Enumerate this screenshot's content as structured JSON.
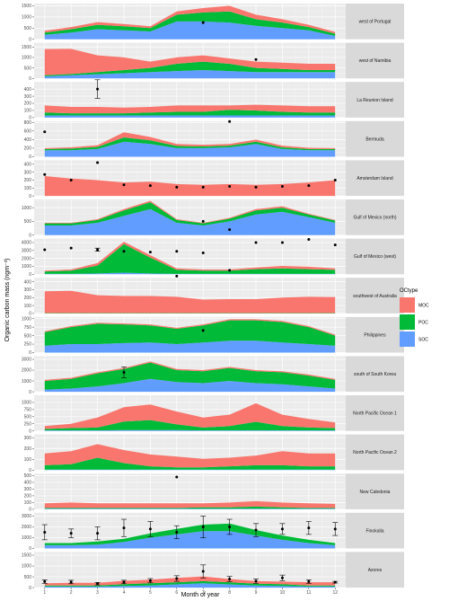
{
  "chart_data": {
    "type": "area",
    "stacked": true,
    "xlabel": "Month of year",
    "ylabel": "Organic carbon mass (ngm⁻³)",
    "x_ticks": [
      1,
      2,
      3,
      4,
      5,
      6,
      7,
      8,
      9,
      10,
      11,
      12
    ],
    "grid": true,
    "legend": {
      "title": "OCtype",
      "position": "right",
      "entries": [
        {
          "name": "MOC",
          "color": "#f8766d"
        },
        {
          "name": "POC",
          "color": "#00ba38"
        },
        {
          "name": "SOC",
          "color": "#619cff"
        }
      ]
    },
    "facets": [
      {
        "label": "west of Portugal",
        "ymax": 1600,
        "ticks": [
          0,
          500,
          1000,
          1500
        ],
        "SOC": [
          200,
          300,
          450,
          400,
          350,
          800,
          800,
          750,
          600,
          500,
          400,
          150
        ],
        "POC": [
          100,
          150,
          200,
          180,
          150,
          300,
          400,
          500,
          300,
          250,
          150,
          100
        ],
        "MOC": [
          80,
          100,
          120,
          100,
          80,
          150,
          200,
          250,
          200,
          150,
          100,
          80
        ],
        "obs": [
          [
            7,
            750
          ]
        ]
      },
      {
        "label": "west of Namibia",
        "ymax": 1700,
        "ticks": [
          0,
          500,
          1000,
          1500
        ],
        "SOC": [
          100,
          150,
          200,
          250,
          300,
          350,
          400,
          350,
          300,
          300,
          300,
          300
        ],
        "POC": [
          50,
          60,
          100,
          150,
          200,
          350,
          400,
          350,
          200,
          150,
          100,
          100
        ],
        "MOC": [
          1250,
          1200,
          800,
          600,
          300,
          300,
          300,
          250,
          300,
          300,
          300,
          300
        ],
        "obs": [
          [
            9,
            900
          ]
        ]
      },
      {
        "label": "La Reunion Island",
        "ymax": 500,
        "ticks": [
          0,
          100,
          200,
          300,
          400
        ],
        "SOC": [
          30,
          30,
          30,
          30,
          30,
          30,
          30,
          30,
          30,
          30,
          30,
          30
        ],
        "POC": [
          40,
          30,
          30,
          30,
          40,
          50,
          50,
          80,
          70,
          50,
          40,
          40
        ],
        "MOC": [
          100,
          90,
          90,
          80,
          80,
          90,
          90,
          60,
          80,
          90,
          90,
          90
        ],
        "obs": [
          [
            3,
            400,
            130
          ]
        ]
      },
      {
        "label": "Bermuda",
        "ymax": 830,
        "ticks": [
          0,
          200,
          400,
          600,
          800
        ],
        "SOC": [
          150,
          150,
          180,
          350,
          300,
          200,
          200,
          220,
          300,
          180,
          150,
          150
        ],
        "POC": [
          30,
          40,
          50,
          100,
          80,
          50,
          40,
          40,
          50,
          40,
          30,
          30
        ],
        "MOC": [
          20,
          30,
          40,
          120,
          80,
          50,
          40,
          40,
          50,
          40,
          30,
          20
        ],
        "obs": [
          [
            1,
            580
          ],
          [
            8,
            820
          ]
        ]
      },
      {
        "label": "Amsterdam Island",
        "ymax": 450,
        "ticks": [
          0,
          100,
          200,
          300,
          400
        ],
        "SOC": [
          0,
          0,
          0,
          0,
          0,
          0,
          0,
          0,
          0,
          0,
          0,
          0
        ],
        "POC": [
          0,
          0,
          0,
          0,
          0,
          0,
          0,
          0,
          0,
          0,
          0,
          0
        ],
        "MOC": [
          250,
          220,
          200,
          170,
          180,
          150,
          140,
          150,
          140,
          150,
          170,
          200
        ],
        "obs": [
          [
            1,
            270
          ],
          [
            2,
            200
          ],
          [
            3,
            420
          ],
          [
            4,
            140
          ],
          [
            5,
            130
          ],
          [
            6,
            110
          ],
          [
            7,
            110
          ],
          [
            8,
            120
          ],
          [
            9,
            110
          ],
          [
            10,
            120
          ],
          [
            11,
            130
          ],
          [
            12,
            200
          ]
        ]
      },
      {
        "label": "Gulf of Mexico (north)",
        "ymax": 1300,
        "ticks": [
          0,
          500,
          1000
        ],
        "SOC": [
          350,
          350,
          450,
          700,
          950,
          450,
          350,
          500,
          750,
          850,
          650,
          450
        ],
        "POC": [
          80,
          80,
          100,
          200,
          250,
          100,
          80,
          100,
          150,
          150,
          100,
          80
        ],
        "MOC": [
          20,
          20,
          30,
          50,
          50,
          30,
          20,
          30,
          50,
          50,
          30,
          20
        ],
        "obs": [
          [
            7,
            500
          ],
          [
            8,
            200
          ]
        ]
      },
      {
        "label": "Gulf of Mexico (west)",
        "ymax": 4500,
        "ticks": [
          0,
          1000,
          2000,
          3000,
          4000
        ],
        "SOC": [
          50,
          50,
          100,
          200,
          100,
          50,
          50,
          50,
          50,
          50,
          50,
          50
        ],
        "POC": [
          300,
          400,
          1000,
          3600,
          2000,
          500,
          400,
          400,
          600,
          700,
          600,
          500
        ],
        "MOC": [
          100,
          150,
          300,
          300,
          300,
          200,
          150,
          150,
          200,
          300,
          300,
          200
        ],
        "obs": [
          [
            1,
            3100
          ],
          [
            2,
            3300
          ],
          [
            3,
            3100,
            200
          ],
          [
            4,
            2900
          ],
          [
            5,
            2800
          ],
          [
            6,
            2900
          ],
          [
            7,
            2700
          ],
          [
            8,
            500
          ],
          [
            9,
            4000
          ],
          [
            10,
            4000
          ],
          [
            11,
            4400
          ],
          [
            12,
            3700
          ]
        ]
      },
      {
        "label": "southwest of Australia",
        "ymax": 450,
        "ticks": [
          0,
          100,
          200,
          300,
          400
        ],
        "SOC": [
          0,
          0,
          0,
          0,
          0,
          0,
          0,
          0,
          0,
          0,
          0,
          0
        ],
        "POC": [
          5,
          5,
          5,
          5,
          5,
          5,
          5,
          5,
          5,
          5,
          5,
          5
        ],
        "MOC": [
          275,
          280,
          225,
          215,
          215,
          205,
          170,
          175,
          175,
          195,
          205,
          200
        ],
        "obs": [
          [
            6,
            470
          ]
        ]
      },
      {
        "label": "Philippines",
        "ymax": 1050,
        "ticks": [
          0,
          250,
          500,
          750,
          1000
        ],
        "SOC": [
          200,
          250,
          250,
          280,
          300,
          250,
          300,
          350,
          350,
          300,
          250,
          200
        ],
        "POC": [
          400,
          500,
          600,
          550,
          500,
          450,
          500,
          600,
          600,
          600,
          500,
          300
        ],
        "MOC": [
          30,
          30,
          30,
          30,
          30,
          30,
          30,
          30,
          30,
          30,
          30,
          30
        ],
        "obs": [
          [
            7,
            650
          ]
        ]
      },
      {
        "label": "south of South Korea",
        "ymax": 3300,
        "ticks": [
          0,
          1000,
          2000,
          3000
        ],
        "SOC": [
          200,
          300,
          500,
          800,
          1200,
          900,
          800,
          1000,
          800,
          700,
          500,
          300
        ],
        "POC": [
          800,
          900,
          1200,
          1300,
          1500,
          1100,
          1100,
          1200,
          1100,
          1100,
          1000,
          800
        ],
        "MOC": [
          100,
          100,
          100,
          100,
          100,
          100,
          100,
          100,
          100,
          100,
          100,
          100
        ],
        "obs": [
          [
            4,
            1800,
            500
          ]
        ]
      },
      {
        "label": "North Pacific Ocean 1",
        "ymax": 1250,
        "ticks": [
          0,
          250,
          500,
          750,
          1000
        ],
        "SOC": [
          20,
          20,
          20,
          30,
          30,
          30,
          20,
          20,
          20,
          20,
          20,
          20
        ],
        "POC": [
          50,
          80,
          100,
          300,
          350,
          200,
          100,
          150,
          300,
          150,
          100,
          80
        ],
        "MOC": [
          100,
          150,
          350,
          500,
          550,
          450,
          350,
          400,
          650,
          400,
          300,
          200
        ],
        "obs": []
      },
      {
        "label": "North Pacific Ocean 2",
        "ymax": 330,
        "ticks": [
          0,
          100,
          200,
          300
        ],
        "SOC": [
          5,
          5,
          5,
          5,
          5,
          5,
          5,
          5,
          5,
          5,
          5,
          5
        ],
        "POC": [
          40,
          50,
          110,
          60,
          30,
          20,
          20,
          30,
          40,
          40,
          30,
          30
        ],
        "MOC": [
          110,
          120,
          125,
          120,
          110,
          100,
          80,
          80,
          90,
          130,
          120,
          120
        ],
        "obs": []
      },
      {
        "label": "New Caledonia",
        "ymax": 530,
        "ticks": [
          0,
          100,
          200,
          300,
          400,
          500
        ],
        "SOC": [
          10,
          10,
          10,
          10,
          10,
          10,
          10,
          10,
          10,
          10,
          10,
          10
        ],
        "POC": [
          10,
          10,
          10,
          10,
          10,
          10,
          20,
          20,
          30,
          20,
          10,
          10
        ],
        "MOC": [
          70,
          80,
          70,
          70,
          70,
          70,
          60,
          70,
          80,
          70,
          70,
          60
        ],
        "obs": [
          [
            6,
            480
          ]
        ]
      },
      {
        "label": "Finokalia",
        "ymax": 3300,
        "ticks": [
          0,
          1000,
          2000,
          3000
        ],
        "SOC": [
          300,
          300,
          350,
          600,
          1000,
          1300,
          1600,
          1600,
          1200,
          800,
          500,
          300
        ],
        "POC": [
          200,
          200,
          300,
          300,
          400,
          500,
          600,
          700,
          500,
          400,
          300,
          200
        ],
        "MOC": [
          0,
          0,
          0,
          0,
          0,
          0,
          0,
          0,
          0,
          0,
          0,
          0
        ],
        "obs": [
          [
            1,
            1500,
            700
          ],
          [
            2,
            1400,
            400
          ],
          [
            3,
            1400,
            600
          ],
          [
            4,
            1900,
            800
          ],
          [
            5,
            1800,
            700
          ],
          [
            6,
            1500,
            600
          ],
          [
            7,
            2000,
            1000
          ],
          [
            8,
            2000,
            700
          ],
          [
            9,
            1700,
            600
          ],
          [
            10,
            1800,
            500
          ],
          [
            11,
            1900,
            600
          ],
          [
            12,
            1800,
            600
          ]
        ]
      },
      {
        "label": "Azores",
        "ymax": 1650,
        "ticks": [
          0,
          500,
          1000,
          1500
        ],
        "SOC": [
          50,
          50,
          50,
          80,
          100,
          150,
          200,
          150,
          100,
          80,
          50,
          50
        ],
        "POC": [
          50,
          50,
          50,
          80,
          100,
          100,
          100,
          100,
          80,
          80,
          50,
          50
        ],
        "MOC": [
          100,
          120,
          120,
          150,
          170,
          200,
          220,
          150,
          120,
          120,
          150,
          150
        ],
        "obs": [
          [
            1,
            280,
            80
          ],
          [
            2,
            260,
            80
          ],
          [
            3,
            180,
            60
          ],
          [
            4,
            260,
            80
          ],
          [
            5,
            320,
            100
          ],
          [
            6,
            420,
            130
          ],
          [
            7,
            750,
            300
          ],
          [
            8,
            400,
            120
          ],
          [
            9,
            300,
            100
          ],
          [
            10,
            450,
            130
          ],
          [
            11,
            280,
            80
          ],
          [
            12,
            250,
            40
          ]
        ]
      }
    ]
  }
}
